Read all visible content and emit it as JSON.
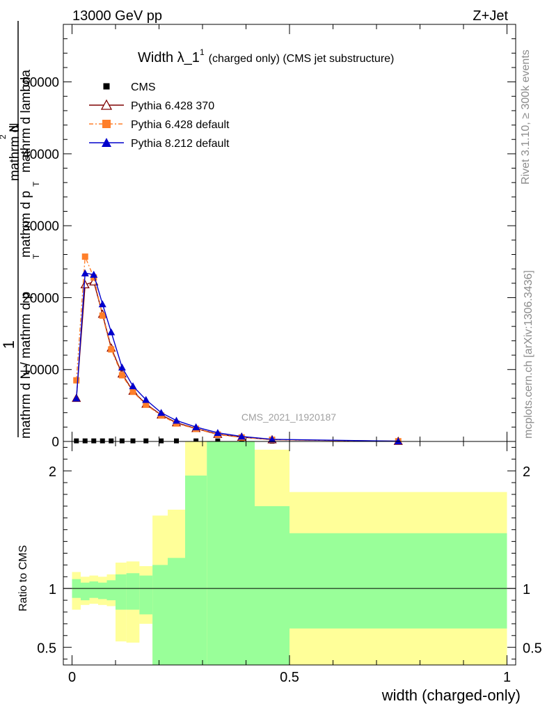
{
  "header": {
    "left": "13000 GeV pp",
    "right": "Z+Jet"
  },
  "side_text": {
    "rivet": "Rivet 3.1.10, ≥ 300k events",
    "mcplots": "mcplots.cern.ch [arXiv:1306.3436]"
  },
  "chart_data": [
    {
      "type": "line",
      "title_main": "Width λ_1",
      "title_sup": "1",
      "title_rest": "(charged only) (CMS jet substructure)",
      "watermark": "CMS_2021_I1920187",
      "ylabel_lines": [
        "1",
        "mathrm d N / mathrm d p",
        "mathrm d",
        "N",
        "mathrm d p",
        "mathrm d lambda"
      ],
      "ylabel_subscripts": [
        "T",
        "T"
      ],
      "ylabel_superscript": "2",
      "xlim": [
        -0.02,
        1.02
      ],
      "ylim": [
        0,
        58000
      ],
      "yticks": [
        0,
        10000,
        20000,
        30000,
        40000,
        50000
      ],
      "ytick_labels": [
        "0",
        "10000",
        "20000",
        "30000",
        "40000",
        "50000"
      ],
      "x": [
        0.01,
        0.03,
        0.05,
        0.07,
        0.09,
        0.115,
        0.14,
        0.17,
        0.205,
        0.24,
        0.285,
        0.335,
        0.39,
        0.46,
        0.75
      ],
      "series": [
        {
          "name": "CMS",
          "color": "#000000",
          "marker": "square",
          "values": [
            80,
            80,
            80,
            80,
            80,
            80,
            80,
            80,
            80,
            80,
            80,
            80,
            60,
            40,
            5
          ]
        },
        {
          "name": "Pythia 6.428 370",
          "color": "#7f0000",
          "marker": "open-triangle",
          "values": [
            6000,
            21800,
            22200,
            17700,
            13000,
            9400,
            7000,
            5200,
            3700,
            2600,
            1800,
            1000,
            600,
            250,
            30
          ]
        },
        {
          "name": "Pythia 6.428 default",
          "color": "#ff7f2a",
          "marker": "square",
          "dashed": true,
          "values": [
            8500,
            25700,
            22800,
            17500,
            12800,
            9200,
            6900,
            5100,
            3600,
            2500,
            1750,
            950,
            560,
            240,
            30
          ]
        },
        {
          "name": "Pythia 8.212 default",
          "color": "#0000cc",
          "marker": "filled-triangle",
          "values": [
            6000,
            23400,
            23200,
            19100,
            15200,
            10300,
            7700,
            5800,
            4000,
            2900,
            2000,
            1200,
            700,
            300,
            35
          ]
        }
      ]
    },
    {
      "type": "area",
      "ylabel": "Ratio to CMS",
      "xlabel": "width (charged-only)",
      "xlim": [
        -0.02,
        1.02
      ],
      "ylim": [
        0.35,
        2.25
      ],
      "xticks": [
        0,
        0.5,
        1
      ],
      "xtick_labels": [
        "0",
        "0.5",
        "1"
      ],
      "yticks": [
        0.5,
        1,
        2
      ],
      "ytick_labels": [
        "0.5",
        "1",
        "2"
      ],
      "reference_line": 1,
      "bins": [
        {
          "x0": 0.0,
          "x1": 0.02,
          "green": [
            0.92,
            1.08
          ],
          "yellow": [
            0.82,
            1.14
          ]
        },
        {
          "x0": 0.02,
          "x1": 0.04,
          "green": [
            0.9,
            1.05
          ],
          "yellow": [
            0.86,
            1.1
          ]
        },
        {
          "x0": 0.04,
          "x1": 0.06,
          "green": [
            0.92,
            1.06
          ],
          "yellow": [
            0.87,
            1.11
          ]
        },
        {
          "x0": 0.06,
          "x1": 0.08,
          "green": [
            0.91,
            1.05
          ],
          "yellow": [
            0.86,
            1.1
          ]
        },
        {
          "x0": 0.08,
          "x1": 0.1,
          "green": [
            0.9,
            1.07
          ],
          "yellow": [
            0.85,
            1.12
          ]
        },
        {
          "x0": 0.1,
          "x1": 0.125,
          "green": [
            0.82,
            1.12
          ],
          "yellow": [
            0.55,
            1.22
          ]
        },
        {
          "x0": 0.125,
          "x1": 0.155,
          "green": [
            0.82,
            1.13
          ],
          "yellow": [
            0.54,
            1.23
          ]
        },
        {
          "x0": 0.155,
          "x1": 0.185,
          "green": [
            0.78,
            1.11
          ],
          "yellow": [
            0.7,
            1.19
          ]
        },
        {
          "x0": 0.185,
          "x1": 0.22,
          "green": [
            0.35,
            1.2
          ],
          "yellow": [
            0.35,
            1.62
          ]
        },
        {
          "x0": 0.22,
          "x1": 0.26,
          "green": [
            0.35,
            1.26
          ],
          "yellow": [
            0.35,
            1.67
          ]
        },
        {
          "x0": 0.26,
          "x1": 0.31,
          "green": [
            0.35,
            1.96
          ],
          "yellow": [
            0.35,
            2.25
          ]
        },
        {
          "x0": 0.31,
          "x1": 0.36,
          "green": [
            0.35,
            2.25
          ],
          "yellow": [
            0.35,
            2.25
          ]
        },
        {
          "x0": 0.36,
          "x1": 0.42,
          "green": [
            0.35,
            2.25
          ],
          "yellow": [
            0.35,
            2.25
          ]
        },
        {
          "x0": 0.42,
          "x1": 0.5,
          "green": [
            0.35,
            1.7
          ],
          "yellow": [
            0.35,
            2.18
          ]
        },
        {
          "x0": 0.5,
          "x1": 1.0,
          "green": [
            0.66,
            1.47
          ],
          "yellow": [
            0.35,
            1.82
          ]
        }
      ]
    }
  ]
}
